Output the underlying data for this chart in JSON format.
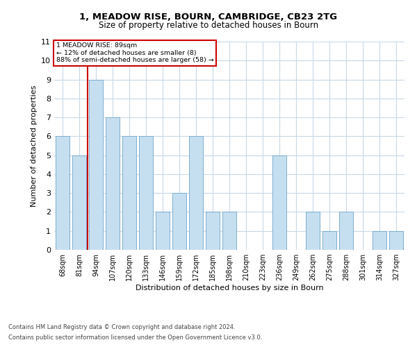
{
  "title": "1, MEADOW RISE, BOURN, CAMBRIDGE, CB23 2TG",
  "subtitle": "Size of property relative to detached houses in Bourn",
  "xlabel": "Distribution of detached houses by size in Bourn",
  "ylabel": "Number of detached properties",
  "footer1": "Contains HM Land Registry data © Crown copyright and database right 2024.",
  "footer2": "Contains public sector information licensed under the Open Government Licence v3.0.",
  "categories": [
    "68sqm",
    "81sqm",
    "94sqm",
    "107sqm",
    "120sqm",
    "133sqm",
    "146sqm",
    "159sqm",
    "172sqm",
    "185sqm",
    "198sqm",
    "210sqm",
    "223sqm",
    "236sqm",
    "249sqm",
    "262sqm",
    "275sqm",
    "288sqm",
    "301sqm",
    "314sqm",
    "327sqm"
  ],
  "values": [
    6,
    5,
    9,
    7,
    6,
    6,
    2,
    3,
    6,
    2,
    2,
    0,
    0,
    5,
    0,
    2,
    1,
    2,
    0,
    1,
    1
  ],
  "bar_color": "#c6dff0",
  "bar_edge_color": "#7aaecf",
  "marker_line_color": "#cc0000",
  "annotation_line1": "1 MEADOW RISE: 89sqm",
  "annotation_line2": "← 12% of detached houses are smaller (8)",
  "annotation_line3": "88% of semi-detached houses are larger (58) →",
  "ylim": [
    0,
    11
  ],
  "yticks": [
    0,
    1,
    2,
    3,
    4,
    5,
    6,
    7,
    8,
    9,
    10,
    11
  ],
  "background_color": "#ffffff",
  "grid_color": "#c8d8e8"
}
